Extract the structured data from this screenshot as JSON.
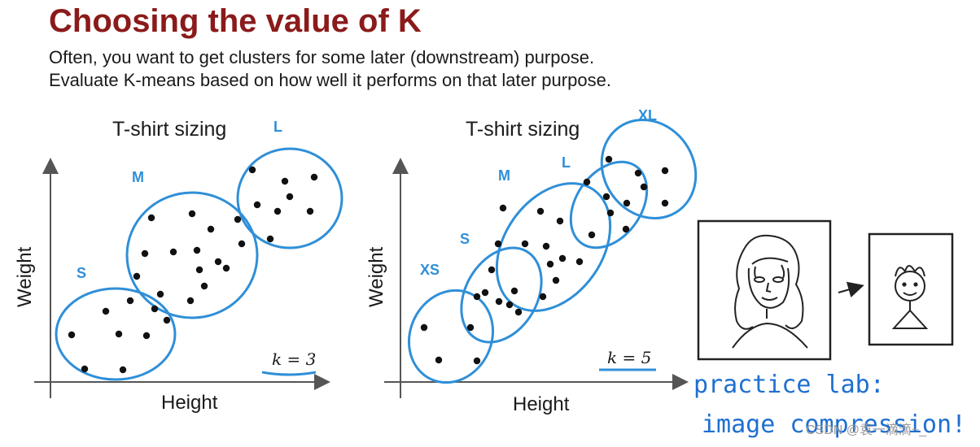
{
  "slide": {
    "title": "Choosing the value of K",
    "subtitle_lines": [
      "Often, you want to get clusters for some later (downstream) purpose.",
      "Evaluate K-means based on how well it performs on that later purpose."
    ]
  },
  "plots": [
    {
      "title": "T-shirt sizing",
      "xlabel": "Height",
      "ylabel": "Weight",
      "k_label": "k = 3",
      "clusters": [
        "S",
        "M",
        "L"
      ]
    },
    {
      "title": "T-shirt sizing",
      "xlabel": "Height",
      "ylabel": "Weight",
      "k_label": "k = 5",
      "clusters": [
        "XS",
        "S",
        "M",
        "L",
        "XL"
      ]
    }
  ],
  "annotation": {
    "line1": "practice lab:",
    "line2": "image compression!"
  },
  "watermark": "CSDN @袁一滴滴~_",
  "colors": {
    "title": "#8b1a1a",
    "cluster": "#2f8fd8",
    "handwriting": "#1e6fd0"
  }
}
